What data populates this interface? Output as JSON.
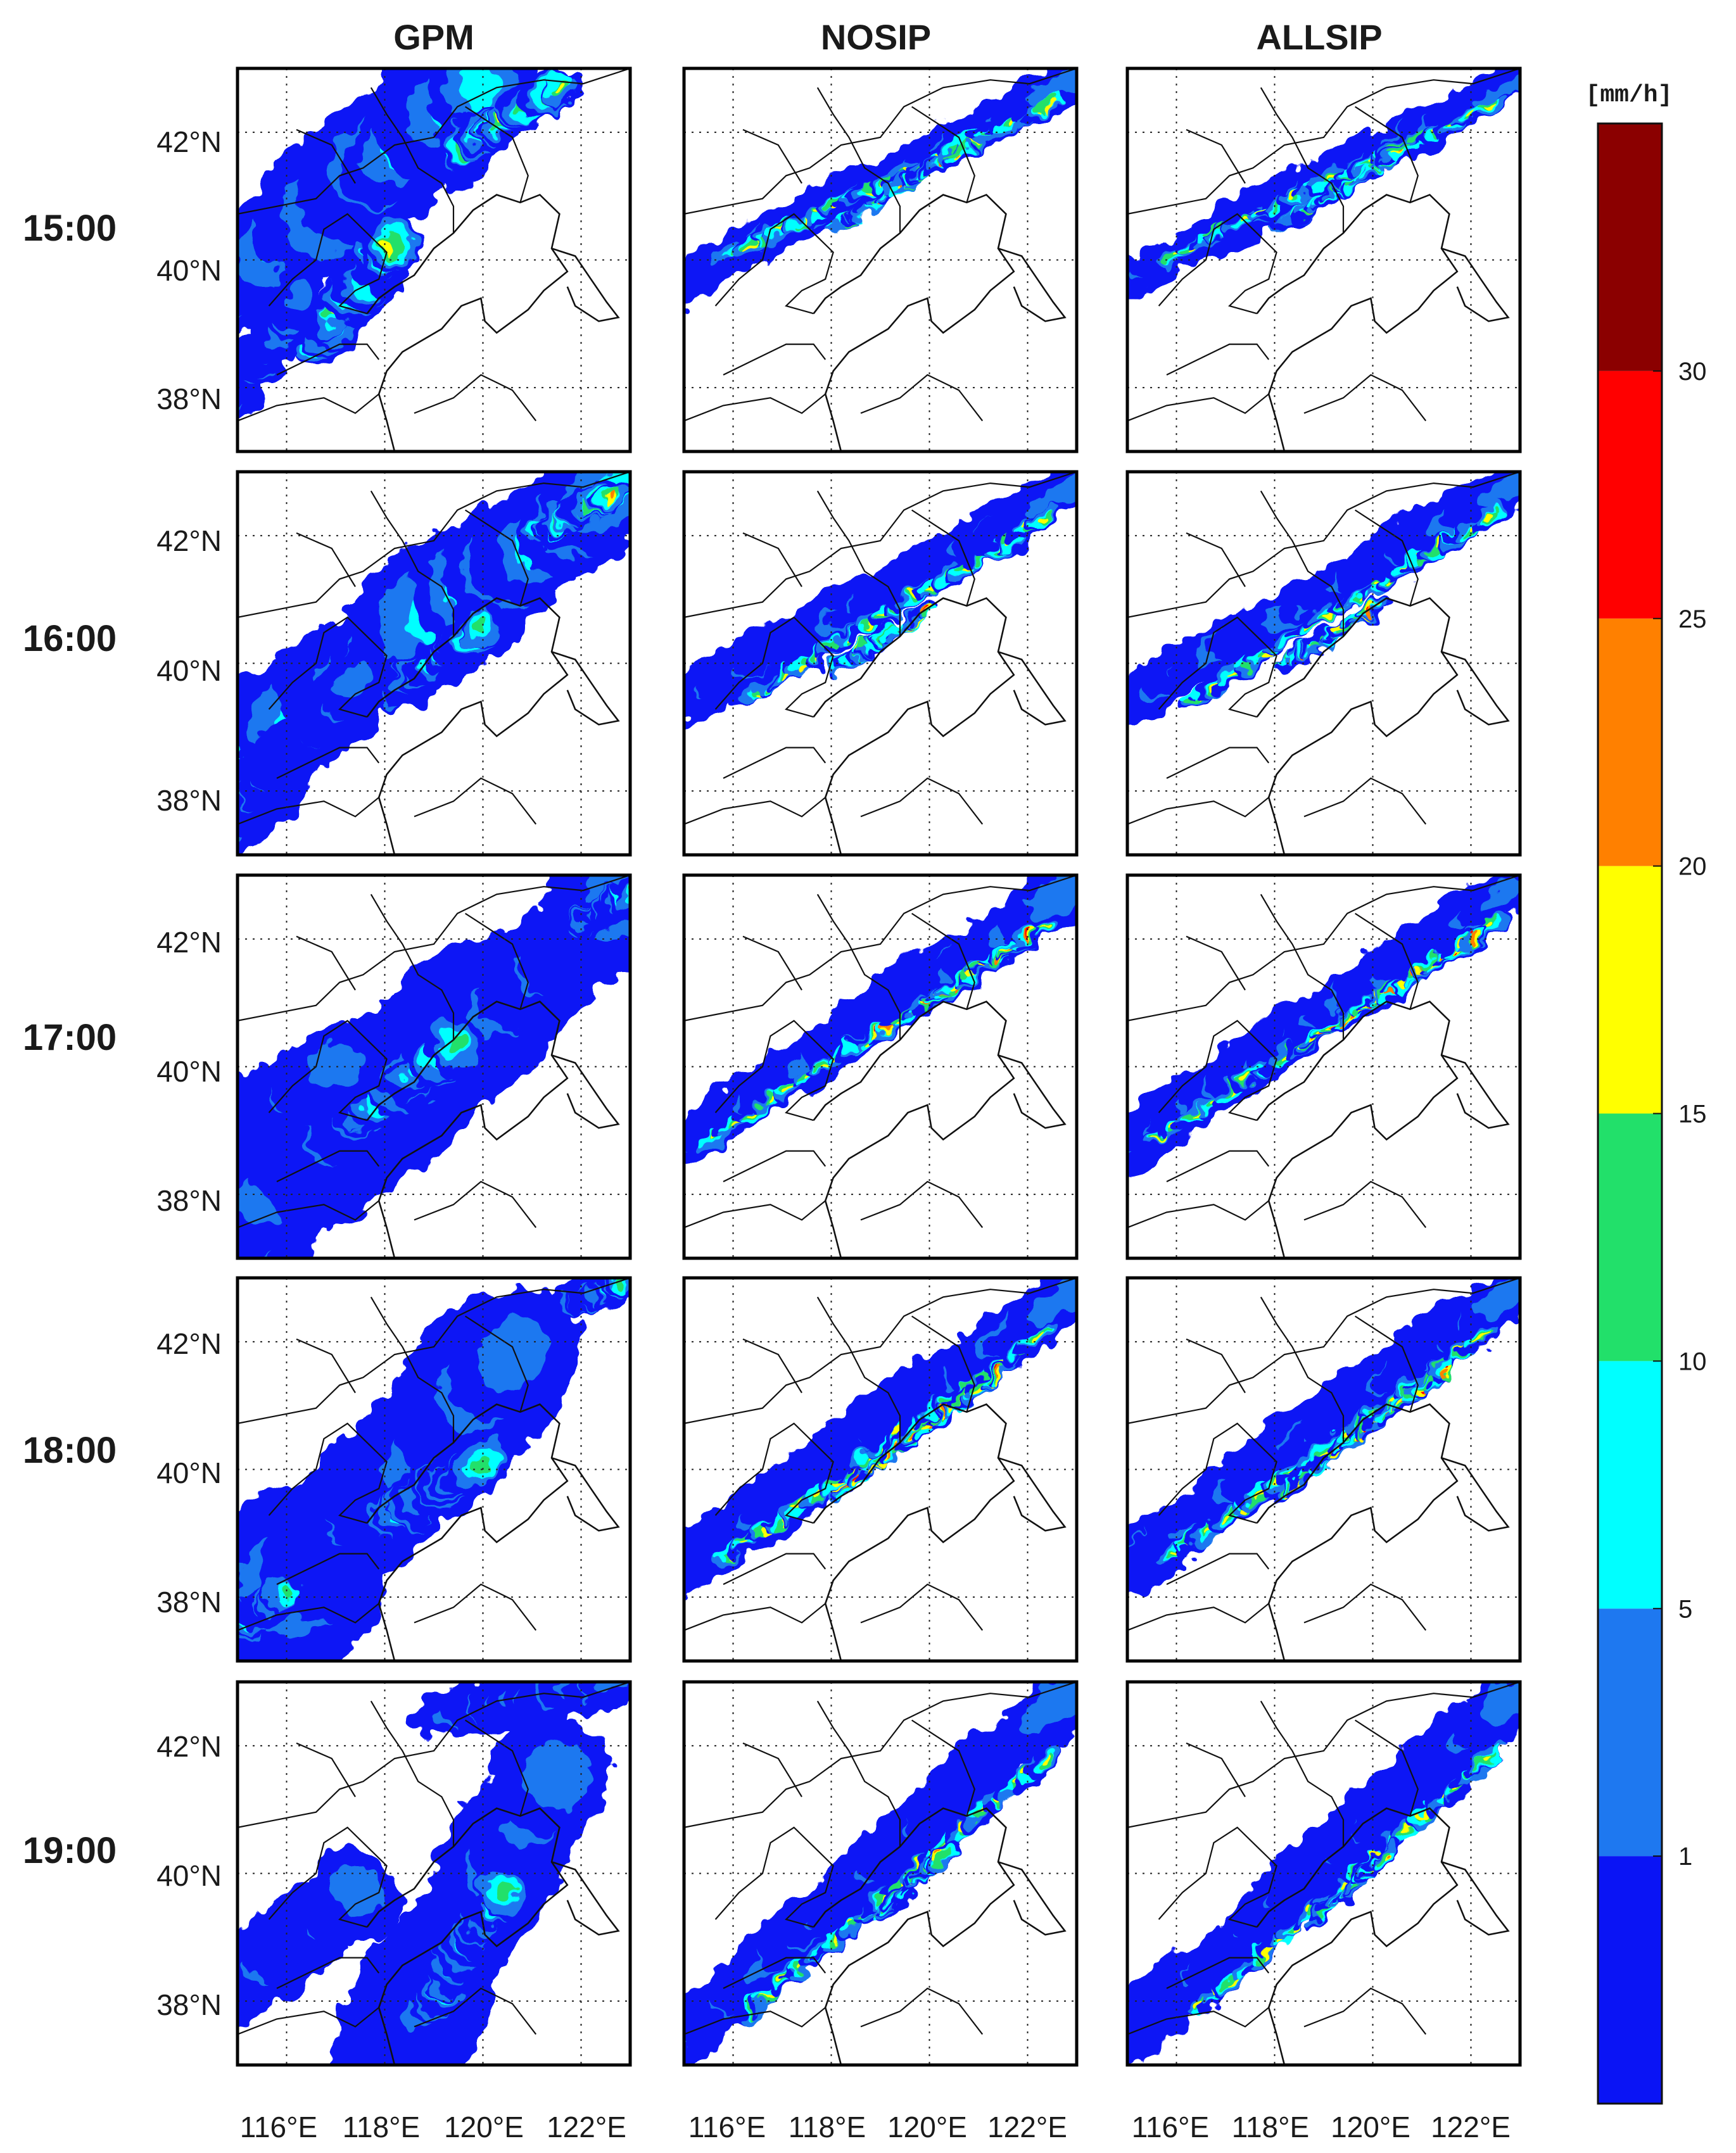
{
  "columns": [
    "GPM",
    "NOSIP",
    "ALLSIP"
  ],
  "rows": [
    "15:00",
    "16:00",
    "17:00",
    "18:00",
    "19:00"
  ],
  "lat_ticks": [
    "42°N",
    "40°N",
    "38°N"
  ],
  "lon_ticks": [
    "116°E",
    "118°E",
    "120°E",
    "122°E"
  ],
  "colorbar": {
    "unit": "[mm/h]",
    "labels": [
      "1",
      "5",
      "10",
      "15",
      "20",
      "25",
      "30"
    ],
    "colors": [
      "#0a14f5",
      "#1e78f0",
      "#00ffff",
      "#22e06a",
      "#ffff00",
      "#ff8000",
      "#ff0000",
      "#8b0000"
    ]
  },
  "chart_data": {
    "type": "heatmap",
    "lon_range": [
      115,
      123
    ],
    "lat_range": [
      37,
      43
    ],
    "grid_dotted": true,
    "colorbar_bounds": [
      0,
      1,
      5,
      10,
      15,
      20,
      25,
      30,
      35
    ]
  }
}
